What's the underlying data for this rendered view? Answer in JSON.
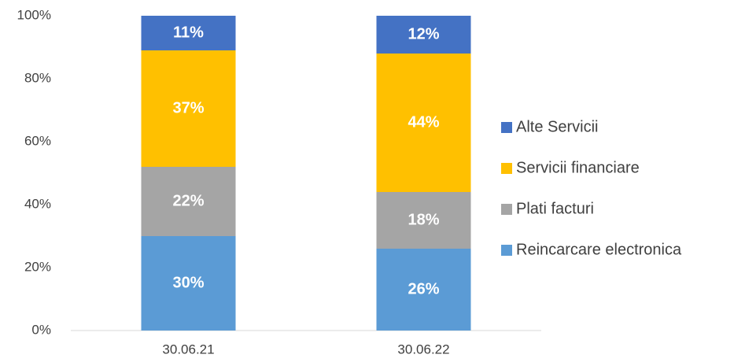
{
  "chart_data": {
    "type": "stacked_bar",
    "categories": [
      "30.06.21",
      "30.06.22"
    ],
    "series": [
      {
        "name": "Reincarcare electronica",
        "color": "#5b9bd5",
        "values": [
          30,
          26
        ],
        "value_labels": [
          "30%",
          "26%"
        ]
      },
      {
        "name": "Plati facturi",
        "color": "#a5a5a5",
        "values": [
          22,
          18
        ],
        "value_labels": [
          "22%",
          "18%"
        ]
      },
      {
        "name": "Servicii financiare",
        "color": "#ffc000",
        "values": [
          37,
          44
        ],
        "value_labels": [
          "37%",
          "44%"
        ]
      },
      {
        "name": "Alte Servicii",
        "color": "#4472c4",
        "values": [
          11,
          12
        ],
        "value_labels": [
          "11%",
          "12%"
        ]
      }
    ],
    "ylim": [
      0,
      100
    ],
    "yticks": [
      {
        "value": 0,
        "label": "0%"
      },
      {
        "value": 20,
        "label": "20%"
      },
      {
        "value": 40,
        "label": "40%"
      },
      {
        "value": 60,
        "label": "60%"
      },
      {
        "value": 80,
        "label": "80%"
      },
      {
        "value": 100,
        "label": "100%"
      }
    ],
    "legend": "right"
  }
}
